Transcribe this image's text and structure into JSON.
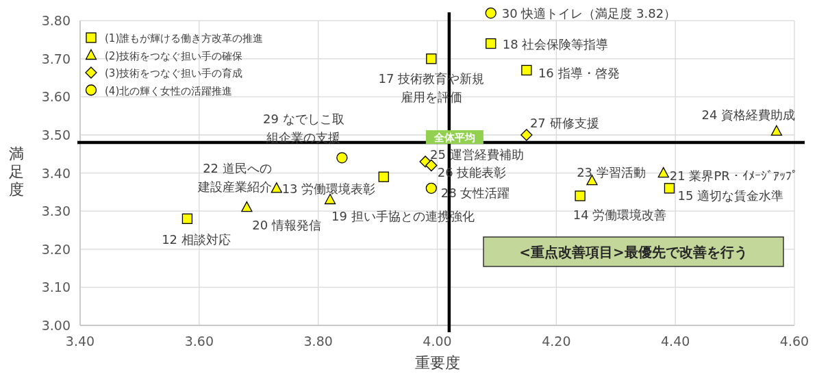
{
  "chart_data": {
    "type": "scatter",
    "xlabel": "重要度",
    "ylabel": "満足度",
    "xlim": [
      3.4,
      4.6
    ],
    "ylim": [
      3.0,
      3.82
    ],
    "xticks": [
      {
        "value": 3.4,
        "label": "3.40"
      },
      {
        "value": 3.6,
        "label": "3.60"
      },
      {
        "value": 3.8,
        "label": "3.80"
      },
      {
        "value": 4.0,
        "label": "4.00"
      },
      {
        "value": 4.2,
        "label": "4.20"
      },
      {
        "value": 4.4,
        "label": "4.40"
      },
      {
        "value": 4.6,
        "label": "4.60"
      }
    ],
    "yticks": [
      {
        "value": 3.0,
        "label": "3.00"
      },
      {
        "value": 3.1,
        "label": "3.10"
      },
      {
        "value": 3.2,
        "label": "3.20"
      },
      {
        "value": 3.3,
        "label": "3.30"
      },
      {
        "value": 3.4,
        "label": "3.40"
      },
      {
        "value": 3.5,
        "label": "3.50"
      },
      {
        "value": 3.6,
        "label": "3.60"
      },
      {
        "value": 3.7,
        "label": "3.70"
      },
      {
        "value": 3.8,
        "label": "3.80"
      }
    ],
    "grid": true,
    "legend": "top left",
    "series": [
      {
        "name": "(1)誰もが輝ける働き方改革の推進",
        "color": "#ffff00",
        "marker": "square",
        "x": [
          3.58,
          3.91,
          4.39,
          4.15,
          3.99,
          4.09,
          4.24
        ],
        "values": [
          3.28,
          3.39,
          3.36,
          3.67,
          3.7,
          3.74,
          3.34
        ]
      },
      {
        "name": "(2)技術をつなぐ担い手の確保",
        "color": "#ffff00",
        "marker": "triangle",
        "x": [
          3.82,
          3.68,
          4.38,
          3.73,
          4.26,
          4.57
        ],
        "values": [
          3.33,
          3.31,
          3.4,
          3.36,
          3.38,
          3.51
        ]
      },
      {
        "name": "(3)技術をつなぐ担い手の育成",
        "color": "#ffff00",
        "marker": "diamond",
        "x": [
          3.98,
          3.99,
          4.15
        ],
        "values": [
          3.43,
          3.42,
          3.5
        ]
      },
      {
        "name": "(4)北の輝く女性の活躍推進",
        "color": "#ffff00",
        "marker": "circle",
        "x": [
          3.99,
          3.84,
          4.09
        ],
        "values": [
          3.36,
          3.44,
          3.82
        ]
      }
    ],
    "ref_lines": [
      {
        "axis": "x",
        "value": 4.02,
        "color": "#000000"
      },
      {
        "axis": "y",
        "value": 3.48,
        "label": "全体平均",
        "color": "#000000"
      }
    ],
    "annotations": [
      {
        "text": "12 相談対応",
        "x": 3.58,
        "y": 3.28
      },
      {
        "text": "13 労働環境表彰",
        "x": 3.91,
        "y": 3.39
      },
      {
        "text": "15 適切な賃金水準",
        "x": 4.39,
        "y": 3.36
      },
      {
        "text": "16 指導・啓発",
        "x": 4.15,
        "y": 3.67
      },
      {
        "text": "17 技術教育や新規雇用を評価",
        "x": 3.99,
        "y": 3.7
      },
      {
        "text": "18 社会保険等指導",
        "x": 4.09,
        "y": 3.74
      },
      {
        "text": "14 労働環境改善",
        "x": 4.24,
        "y": 3.34
      },
      {
        "text": "19 担い手協との連携強化",
        "x": 3.82,
        "y": 3.33
      },
      {
        "text": "20 情報発信",
        "x": 3.68,
        "y": 3.31
      },
      {
        "text": "21 業界PR・ｲﾒｰｼﾞｱｯﾌﾟ",
        "x": 4.38,
        "y": 3.4
      },
      {
        "text": "22 道民への建設産業紹介",
        "x": 3.73,
        "y": 3.36
      },
      {
        "text": "23 学習活動",
        "x": 4.26,
        "y": 3.38
      },
      {
        "text": "24 資格経費助成",
        "x": 4.57,
        "y": 3.51
      },
      {
        "text": "25 運営経費補助",
        "x": 3.98,
        "y": 3.43
      },
      {
        "text": "26 技能表彰",
        "x": 3.99,
        "y": 3.42
      },
      {
        "text": "27 研修支援",
        "x": 4.15,
        "y": 3.5
      },
      {
        "text": "28 女性活躍",
        "x": 3.99,
        "y": 3.36
      },
      {
        "text": "29 なでしこ取組企業の支援",
        "x": 3.84,
        "y": 3.44
      },
      {
        "text": "30 快適トイレ（満足度 3.82）",
        "x": 4.09,
        "y": 3.82
      },
      "<重点改善項目>最優先で改善を行う"
    ]
  }
}
